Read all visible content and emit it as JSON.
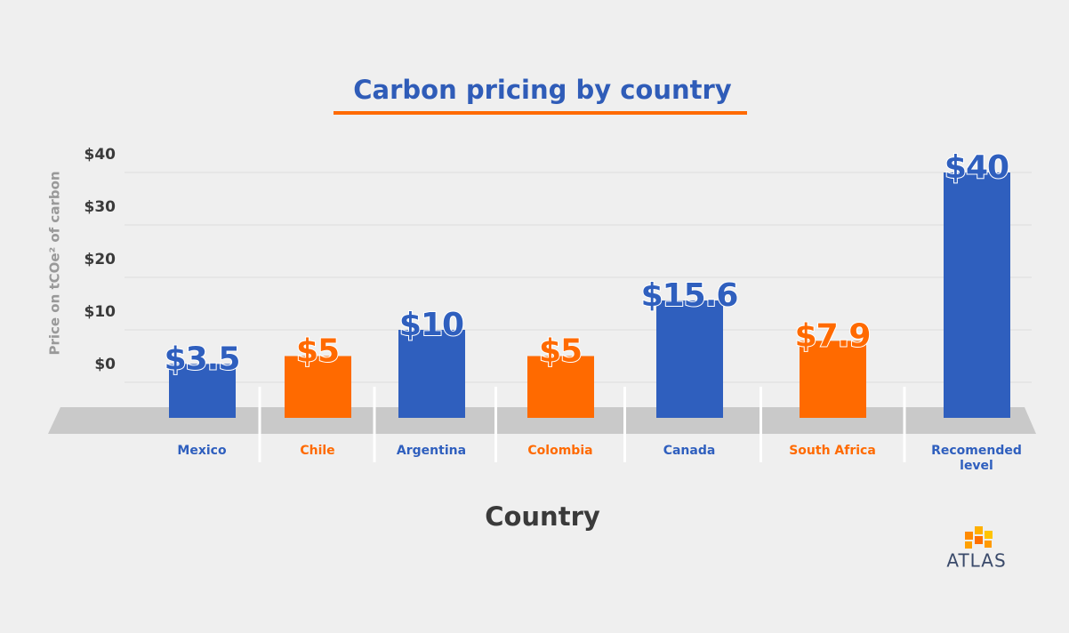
{
  "chart_data": {
    "type": "bar",
    "title": "Carbon pricing by country",
    "x_label": "Country",
    "y_label": "Price on tCOe² of carbon",
    "categories": [
      "Mexico",
      "Chile",
      "Argentina",
      "Colombia",
      "Canada",
      "South Africa",
      "Recomended level"
    ],
    "values": [
      3.5,
      5,
      10,
      5,
      15.6,
      7.9,
      40
    ],
    "value_labels": [
      "$3.5",
      "$5",
      "$10",
      "$5",
      "$15.6",
      "$7.9",
      "$40"
    ],
    "colors": [
      "#2f5fbe",
      "#ff6a00",
      "#2f5fbe",
      "#ff6a00",
      "#2f5fbe",
      "#ff6a00",
      "#2f5fbe"
    ],
    "ylim": [
      0,
      40
    ],
    "yticks": [
      {
        "value": 0,
        "label": "$0"
      },
      {
        "value": 10,
        "label": "$10"
      },
      {
        "value": 20,
        "label": "$20"
      },
      {
        "value": 30,
        "label": "$30"
      },
      {
        "value": 40,
        "label": "$40"
      }
    ],
    "grid": true
  },
  "logo": "ATLAS"
}
